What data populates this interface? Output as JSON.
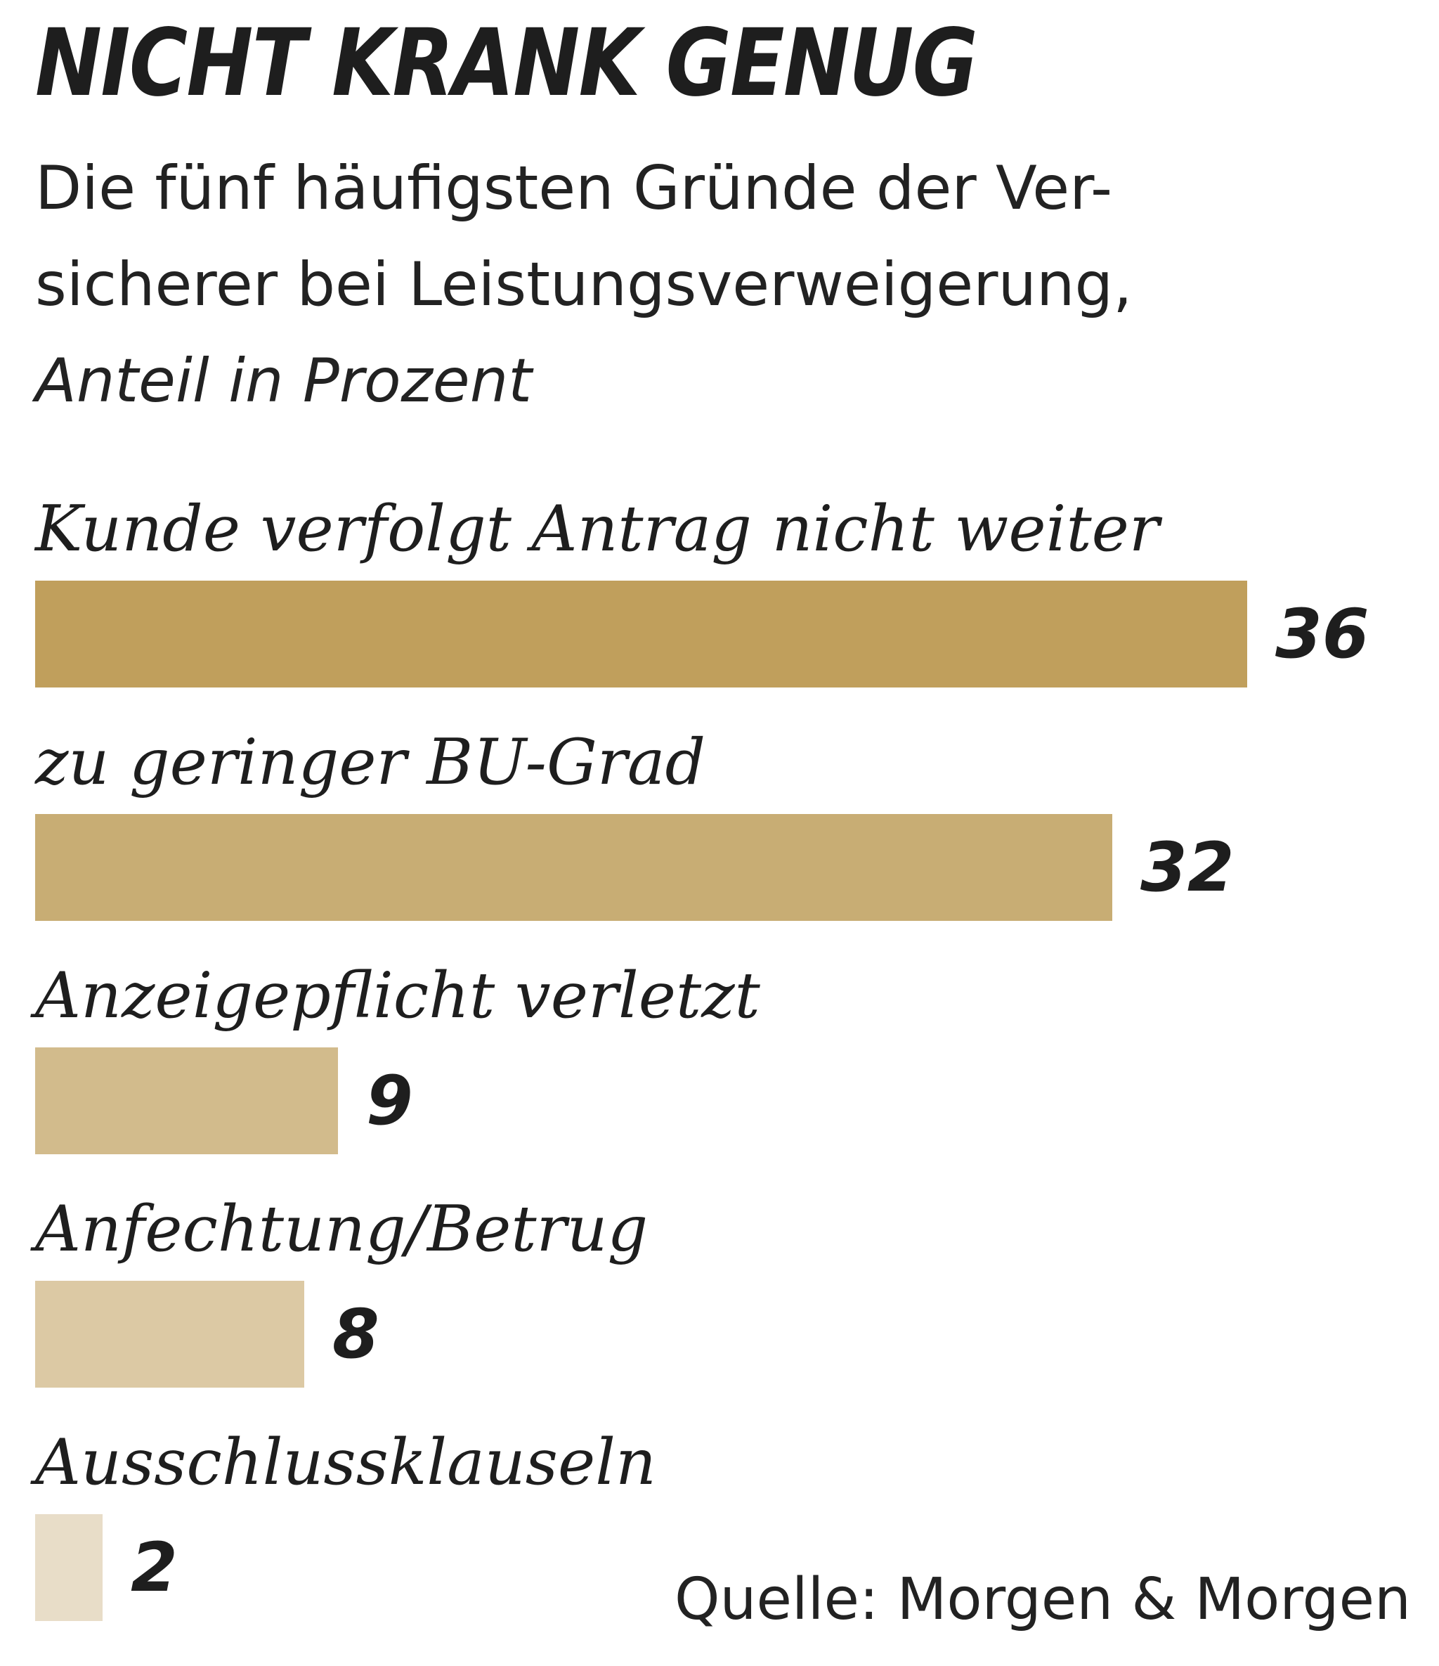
{
  "chart_data": {
    "type": "bar",
    "orientation": "horizontal",
    "title": "NICHT KRANK GENUG",
    "subtitle_lines": [
      "Die fünf häufigsten Gründe der Ver-",
      "sicherer bei Leistungsverweigerung,"
    ],
    "unit": "Anteil in Prozent",
    "categories": [
      "Kunde verfolgt Antrag nicht weiter",
      "zu geringer BU-Grad",
      "Anzeigepflicht verletzt",
      "Anfechtung/Betrug",
      "Ausschlussklauseln"
    ],
    "values": [
      36,
      32,
      9,
      8,
      2
    ],
    "value_labels": [
      "36",
      "32",
      "9",
      "8",
      "2"
    ],
    "colors": [
      "#c09f5c",
      "#c8ad74",
      "#d2bb8c",
      "#dcc9a4",
      "#e8ddc8"
    ],
    "xlim": [
      0,
      36
    ],
    "grid": false,
    "source": "Quelle: Morgen & Morgen"
  }
}
